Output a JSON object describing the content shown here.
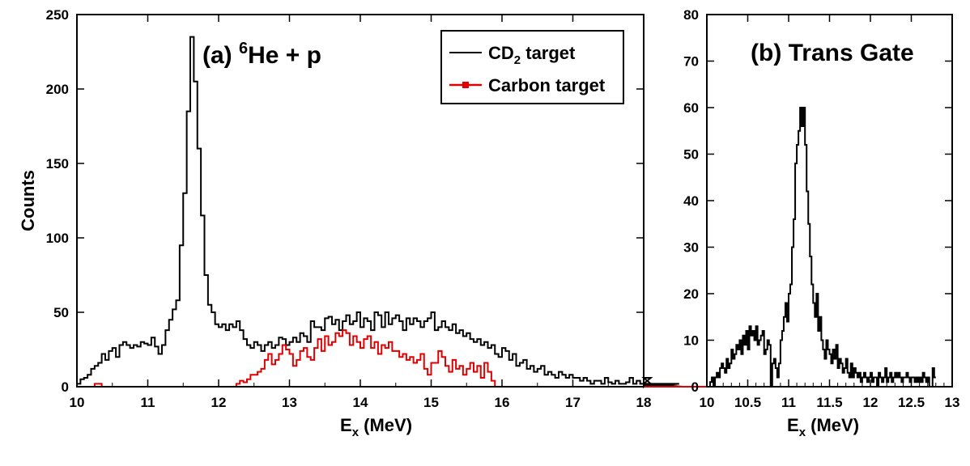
{
  "chart_data": [
    {
      "type": "line",
      "title": "(a) ",
      "title_sup": "6",
      "title_rest": "He + p",
      "xlabel": "E",
      "xlabel_sub": "x",
      "xlabel_rest": " (MeV)",
      "ylabel": "Counts",
      "xlim": [
        10,
        18
      ],
      "ylim": [
        0,
        250
      ],
      "xticks": [
        10,
        11,
        12,
        13,
        14,
        15,
        16,
        17,
        18
      ],
      "yticks": [
        0,
        50,
        100,
        150,
        200,
        250
      ],
      "legend": {
        "placement": "top-right",
        "entries": [
          {
            "text": "CD",
            "sub": "2",
            "rest": " target",
            "color": "#000000",
            "marker": "none"
          },
          {
            "text": "Carbon target",
            "sub": "",
            "rest": "",
            "color": "#e00000",
            "marker": "square"
          }
        ]
      },
      "series": [
        {
          "name": "CD2 target",
          "color": "#000000",
          "bin_width": 0.05,
          "x_start": 10.05,
          "values": [
            2,
            5,
            6,
            8,
            12,
            14,
            16,
            22,
            18,
            24,
            26,
            20,
            28,
            30,
            28,
            26,
            28,
            27,
            30,
            29,
            28,
            33,
            27,
            22,
            28,
            38,
            45,
            52,
            58,
            95,
            130,
            185,
            235,
            205,
            160,
            115,
            75,
            55,
            50,
            42,
            40,
            42,
            38,
            42,
            40,
            44,
            38,
            32,
            28,
            26,
            30,
            28,
            24,
            28,
            30,
            26,
            28,
            33,
            32,
            28,
            30,
            33,
            30,
            36,
            34,
            30,
            44,
            40,
            40,
            38,
            46,
            47,
            42,
            45,
            38,
            44,
            48,
            42,
            44,
            50,
            40,
            46,
            44,
            38,
            50,
            48,
            40,
            50,
            42,
            46,
            48,
            44,
            38,
            46,
            42,
            46,
            44,
            40,
            44,
            46,
            50,
            38,
            40,
            44,
            40,
            38,
            42,
            36,
            38,
            34,
            36,
            32,
            30,
            32,
            28,
            30,
            26,
            28,
            22,
            20,
            26,
            24,
            18,
            22,
            14,
            16,
            18,
            12,
            14,
            10,
            12,
            14,
            8,
            10,
            8,
            6,
            10,
            8,
            6,
            8,
            6,
            6,
            4,
            6,
            4,
            2,
            4,
            4,
            2,
            6,
            3,
            2,
            4,
            2,
            2,
            3,
            6,
            2,
            4,
            2,
            0,
            2,
            6,
            0,
            2,
            2,
            0,
            1,
            1,
            0,
            2,
            0,
            0,
            0,
            0,
            0,
            0,
            0,
            0,
            0,
            0,
            0,
            0,
            0,
            0,
            0
          ]
        },
        {
          "name": "Carbon target",
          "color": "#e00000",
          "bin_width": 0.05,
          "x_start": 10.05,
          "values": [
            0,
            0,
            0,
            0,
            0,
            2,
            2,
            0,
            0,
            0,
            0,
            0,
            0,
            0,
            0,
            0,
            0,
            0,
            0,
            0,
            0,
            0,
            0,
            0,
            0,
            0,
            0,
            0,
            0,
            0,
            0,
            0,
            0,
            0,
            0,
            0,
            0,
            0,
            0,
            0,
            0,
            0,
            0,
            0,
            0,
            2,
            4,
            3,
            5,
            8,
            8,
            10,
            12,
            18,
            22,
            15,
            18,
            22,
            28,
            25,
            22,
            14,
            18,
            24,
            26,
            20,
            18,
            26,
            32,
            24,
            34,
            28,
            30,
            36,
            34,
            38,
            36,
            28,
            34,
            30,
            26,
            32,
            34,
            26,
            30,
            22,
            28,
            26,
            30,
            24,
            24,
            20,
            22,
            18,
            20,
            16,
            18,
            22,
            12,
            8,
            16,
            16,
            24,
            20,
            14,
            10,
            18,
            12,
            14,
            8,
            12,
            16,
            10,
            14,
            6,
            16,
            10,
            4,
            0,
            0,
            0,
            0,
            0,
            0,
            0,
            0,
            0,
            0,
            0,
            0,
            0,
            0,
            0,
            0,
            0,
            0,
            0,
            0,
            0,
            0,
            0,
            0,
            0,
            0,
            0,
            0,
            0,
            0,
            0,
            0,
            0,
            0,
            0,
            0,
            0,
            0,
            0,
            0,
            0,
            0,
            0,
            0,
            0,
            0,
            0,
            0,
            0,
            0,
            0,
            0,
            0,
            0,
            0,
            0,
            0,
            0,
            0,
            0,
            0,
            0,
            0,
            0,
            0,
            0,
            0,
            0,
            0,
            0,
            0,
            0,
            0,
            0,
            0
          ]
        }
      ]
    },
    {
      "type": "line",
      "title": "(b) Trans Gate",
      "xlabel": "E",
      "xlabel_sub": "x",
      "xlabel_rest": " (MeV)",
      "ylabel": "",
      "xlim": [
        10,
        13
      ],
      "ylim": [
        0,
        80
      ],
      "xticks": [
        10,
        10.5,
        11,
        11.5,
        12,
        12.5,
        13
      ],
      "yticks": [
        0,
        10,
        20,
        30,
        40,
        50,
        60,
        70,
        80
      ],
      "series": [
        {
          "name": "",
          "color": "#000000",
          "bin_width": 0.02,
          "x_start": 10.02,
          "values": [
            0,
            0,
            1,
            2,
            0,
            2,
            3,
            2,
            4,
            5,
            4,
            3,
            6,
            4,
            5,
            8,
            6,
            7,
            9,
            8,
            10,
            7,
            11,
            9,
            12,
            8,
            13,
            11,
            12,
            10,
            13,
            9,
            10,
            11,
            12,
            7,
            8,
            10,
            9,
            0,
            5,
            6,
            4,
            2,
            5,
            10,
            12,
            15,
            18,
            14,
            20,
            22,
            30,
            36,
            48,
            52,
            55,
            60,
            56,
            60,
            52,
            42,
            35,
            28,
            22,
            18,
            15,
            20,
            12,
            15,
            10,
            8,
            6,
            10,
            8,
            7,
            5,
            8,
            6,
            9,
            4,
            6,
            5,
            3,
            4,
            6,
            3,
            2,
            5,
            2,
            4,
            3,
            2,
            3,
            1,
            2,
            3,
            2,
            1,
            2,
            3,
            1,
            2,
            2,
            0,
            3,
            2,
            1,
            2,
            4,
            1,
            2,
            3,
            1,
            2,
            3,
            2,
            3,
            2,
            1,
            2,
            2,
            3,
            2,
            1,
            2,
            2,
            1,
            2,
            1,
            2,
            1,
            3,
            2,
            1,
            2,
            0,
            0,
            4,
            2
          ]
        }
      ]
    }
  ]
}
